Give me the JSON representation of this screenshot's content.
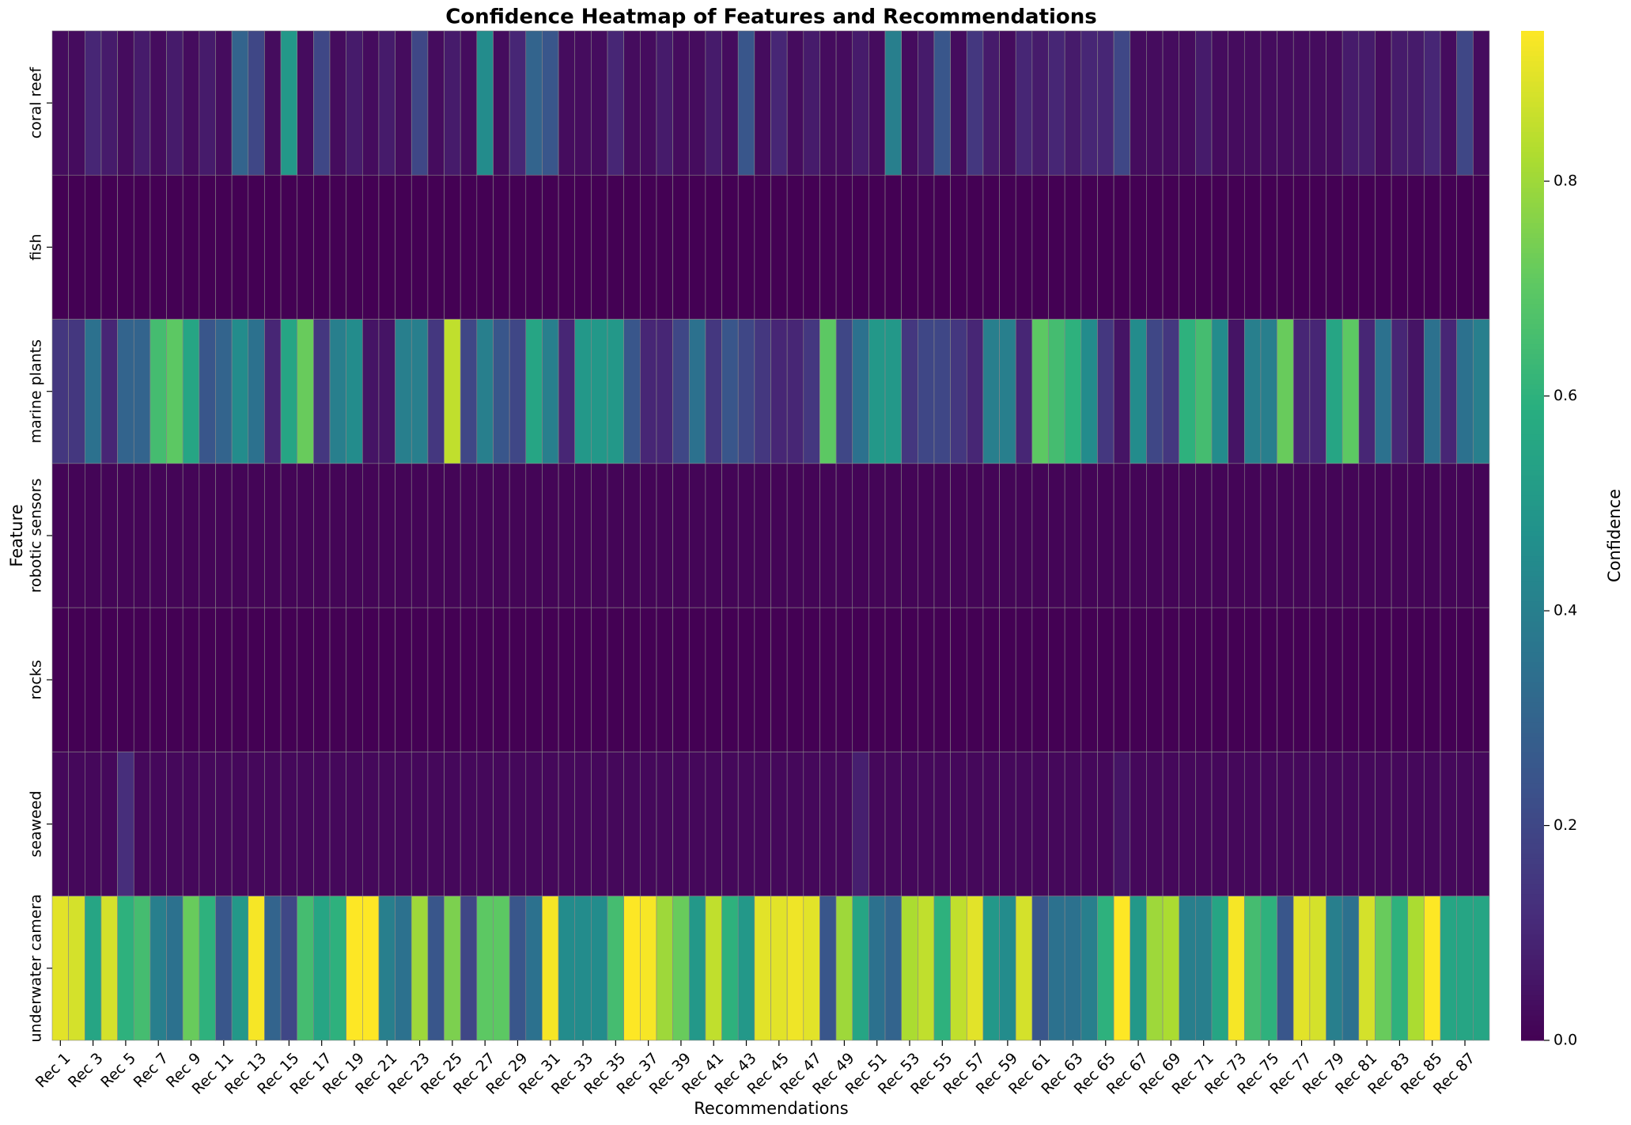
{
  "chart_data": {
    "type": "heatmap",
    "title": "Confidence Heatmap of Features and Recommendations",
    "xlabel": "Recommendations",
    "ylabel": "Feature",
    "colormap": "viridis",
    "categories": [
      "Rec 1",
      null,
      "Rec 3",
      null,
      "Rec 5",
      null,
      "Rec 7",
      null,
      "Rec 9",
      null,
      "Rec 11",
      null,
      "Rec 13",
      null,
      "Rec 15",
      null,
      "Rec 17",
      null,
      "Rec 19",
      null,
      "Rec 21",
      null,
      "Rec 23",
      null,
      "Rec 25",
      null,
      "Rec 27",
      null,
      "Rec 29",
      null,
      "Rec 31",
      null,
      "Rec 33",
      null,
      "Rec 35",
      null,
      "Rec 37",
      null,
      "Rec 39",
      null,
      "Rec 41",
      null,
      "Rec 43",
      null,
      "Rec 45",
      null,
      "Rec 47",
      null,
      "Rec 49",
      null,
      "Rec 51",
      null,
      "Rec 53",
      null,
      "Rec 55",
      null,
      "Rec 57",
      null,
      "Rec 59",
      null,
      "Rec 61",
      null,
      "Rec 63",
      null,
      "Rec 65",
      null,
      "Rec 67",
      null,
      "Rec 69",
      null,
      "Rec 71",
      null,
      "Rec 73",
      null,
      "Rec 75",
      null,
      "Rec 77",
      null,
      "Rec 79",
      null,
      "Rec 81",
      null,
      "Rec 83",
      null,
      "Rec 85",
      null,
      "Rec 87",
      null
    ],
    "series": [
      {
        "name": "coral reef",
        "values": [
          0.03,
          0.03,
          0.1,
          0.07,
          0.03,
          0.07,
          0.03,
          0.07,
          0.03,
          0.07,
          0.03,
          0.3,
          0.2,
          0.03,
          0.5,
          0.03,
          0.2,
          0.03,
          0.07,
          0.03,
          0.07,
          0.03,
          0.2,
          0.03,
          0.07,
          0.03,
          0.45,
          0.03,
          0.1,
          0.3,
          0.25,
          0.03,
          0.03,
          0.03,
          0.1,
          0.03,
          0.03,
          0.07,
          0.03,
          0.03,
          0.07,
          0.03,
          0.25,
          0.03,
          0.1,
          0.03,
          0.07,
          0.03,
          0.03,
          0.07,
          0.03,
          0.4,
          0.03,
          0.07,
          0.25,
          0.03,
          0.15,
          0.07,
          0.03,
          0.1,
          0.07,
          0.1,
          0.07,
          0.1,
          0.1,
          0.2,
          0.03,
          0.03,
          0.03,
          0.03,
          0.07,
          0.03,
          0.03,
          0.03,
          0.03,
          0.03,
          0.03,
          0.03,
          0.03,
          0.07,
          0.07,
          0.03,
          0.07,
          0.07,
          0.1,
          0.03,
          0.2,
          0.03
        ]
      },
      {
        "name": "fish",
        "values": [
          0,
          0,
          0,
          0,
          0,
          0,
          0,
          0,
          0,
          0,
          0,
          0,
          0,
          0,
          0,
          0,
          0,
          0,
          0,
          0,
          0,
          0,
          0,
          0,
          0,
          0,
          0,
          0,
          0,
          0,
          0,
          0,
          0,
          0,
          0,
          0,
          0,
          0,
          0,
          0,
          0,
          0,
          0,
          0,
          0,
          0,
          0,
          0,
          0,
          0,
          0,
          0,
          0,
          0,
          0,
          0,
          0,
          0,
          0,
          0,
          0,
          0,
          0,
          0,
          0,
          0,
          0,
          0,
          0,
          0,
          0,
          0,
          0,
          0,
          0,
          0,
          0,
          0,
          0,
          0,
          0,
          0,
          0,
          0,
          0,
          0,
          0,
          0
        ]
      },
      {
        "name": "marine plants",
        "values": [
          0.15,
          0.15,
          0.35,
          0.1,
          0.3,
          0.3,
          0.65,
          0.7,
          0.55,
          0.25,
          0.3,
          0.45,
          0.35,
          0.1,
          0.55,
          0.72,
          0.15,
          0.4,
          0.45,
          0.05,
          0.05,
          0.4,
          0.4,
          0.15,
          0.85,
          0.2,
          0.4,
          0.25,
          0.2,
          0.55,
          0.4,
          0.1,
          0.5,
          0.5,
          0.5,
          0.25,
          0.1,
          0.1,
          0.2,
          0.35,
          0.15,
          0.25,
          0.2,
          0.15,
          0.1,
          0.1,
          0.15,
          0.7,
          0.2,
          0.35,
          0.5,
          0.5,
          0.15,
          0.2,
          0.2,
          0.15,
          0.1,
          0.4,
          0.4,
          0.1,
          0.7,
          0.65,
          0.6,
          0.45,
          0.15,
          0.05,
          0.45,
          0.2,
          0.15,
          0.6,
          0.65,
          0.45,
          0.05,
          0.4,
          0.4,
          0.72,
          0.1,
          0.1,
          0.55,
          0.7,
          0.1,
          0.35,
          0.1,
          0.05,
          0.35,
          0.1,
          0.35,
          0.4
        ]
      },
      {
        "name": "robotic sensors",
        "values": [
          0.01,
          0.01,
          0.01,
          0.01,
          0.01,
          0.01,
          0.01,
          0.01,
          0.01,
          0.01,
          0.01,
          0.01,
          0.01,
          0.01,
          0.01,
          0.01,
          0.01,
          0.01,
          0.01,
          0.01,
          0.01,
          0.01,
          0.01,
          0.01,
          0.01,
          0.01,
          0.01,
          0.01,
          0.01,
          0.01,
          0.01,
          0.01,
          0.01,
          0.01,
          0.01,
          0.01,
          0.01,
          0.01,
          0.01,
          0.01,
          0.01,
          0.01,
          0.01,
          0.01,
          0.01,
          0.01,
          0.01,
          0.01,
          0.01,
          0.01,
          0.01,
          0.01,
          0.01,
          0.01,
          0.01,
          0.01,
          0.01,
          0.01,
          0.01,
          0.01,
          0.01,
          0.01,
          0.01,
          0.01,
          0.01,
          0.01,
          0.01,
          0.01,
          0.01,
          0.01,
          0.01,
          0.01,
          0.01,
          0.01,
          0.01,
          0.01,
          0.01,
          0.01,
          0.01,
          0.01,
          0.01,
          0.01,
          0.01,
          0.01,
          0.01,
          0.01,
          0.01,
          0.01
        ]
      },
      {
        "name": "rocks",
        "values": [
          0,
          0,
          0,
          0,
          0,
          0,
          0,
          0,
          0,
          0,
          0,
          0,
          0,
          0,
          0,
          0,
          0,
          0,
          0,
          0,
          0,
          0,
          0,
          0,
          0,
          0,
          0,
          0,
          0,
          0,
          0,
          0,
          0,
          0,
          0,
          0,
          0,
          0,
          0,
          0,
          0,
          0,
          0,
          0,
          0,
          0,
          0,
          0,
          0,
          0,
          0,
          0,
          0,
          0,
          0,
          0,
          0,
          0,
          0,
          0,
          0,
          0,
          0,
          0,
          0,
          0,
          0,
          0,
          0,
          0,
          0,
          0,
          0,
          0,
          0,
          0,
          0,
          0,
          0,
          0,
          0,
          0,
          0,
          0,
          0,
          0,
          0,
          0
        ]
      },
      {
        "name": "seaweed",
        "values": [
          0.02,
          0.02,
          0.02,
          0.02,
          0.12,
          0.02,
          0.02,
          0.02,
          0.02,
          0.02,
          0.02,
          0.02,
          0.02,
          0.02,
          0.02,
          0.02,
          0.02,
          0.02,
          0.02,
          0.02,
          0.02,
          0.02,
          0.02,
          0.02,
          0.02,
          0.02,
          0.02,
          0.02,
          0.02,
          0.02,
          0.02,
          0.02,
          0.02,
          0.02,
          0.02,
          0.02,
          0.02,
          0.02,
          0.02,
          0.02,
          0.02,
          0.02,
          0.02,
          0.02,
          0.02,
          0.02,
          0.02,
          0.02,
          0.02,
          0.08,
          0.02,
          0.02,
          0.02,
          0.02,
          0.02,
          0.02,
          0.02,
          0.02,
          0.02,
          0.02,
          0.02,
          0.02,
          0.02,
          0.02,
          0.02,
          0.05,
          0.02,
          0.02,
          0.02,
          0.02,
          0.02,
          0.02,
          0.02,
          0.02,
          0.02,
          0.02,
          0.02,
          0.02,
          0.02,
          0.02,
          0.02,
          0.02,
          0.02,
          0.02,
          0.02,
          0.02,
          0.02,
          0.02
        ]
      },
      {
        "name": "underwater camera",
        "values": [
          0.9,
          0.88,
          0.55,
          0.88,
          0.6,
          0.65,
          0.4,
          0.35,
          0.72,
          0.6,
          0.25,
          0.5,
          0.93,
          0.3,
          0.2,
          0.65,
          0.55,
          0.6,
          0.94,
          0.94,
          0.4,
          0.35,
          0.8,
          0.25,
          0.75,
          0.2,
          0.7,
          0.7,
          0.25,
          0.35,
          0.93,
          0.45,
          0.45,
          0.45,
          0.65,
          0.94,
          0.93,
          0.8,
          0.72,
          0.5,
          0.85,
          0.6,
          0.5,
          0.9,
          0.9,
          0.92,
          0.9,
          0.25,
          0.8,
          0.55,
          0.35,
          0.3,
          0.82,
          0.85,
          0.6,
          0.85,
          0.9,
          0.5,
          0.45,
          0.88,
          0.25,
          0.35,
          0.35,
          0.4,
          0.6,
          0.94,
          0.5,
          0.8,
          0.82,
          0.4,
          0.4,
          0.55,
          0.93,
          0.65,
          0.6,
          0.25,
          0.9,
          0.88,
          0.4,
          0.35,
          0.88,
          0.72,
          0.6,
          0.82,
          0.94,
          0.55,
          0.55,
          0.55
        ]
      }
    ],
    "colorbar": {
      "label": "Confidence",
      "lim": [
        0,
        0.94
      ],
      "ticks": [
        {
          "value": 0,
          "label": "0.0"
        },
        0.2,
        0.4,
        0.6,
        0.8
      ]
    }
  }
}
